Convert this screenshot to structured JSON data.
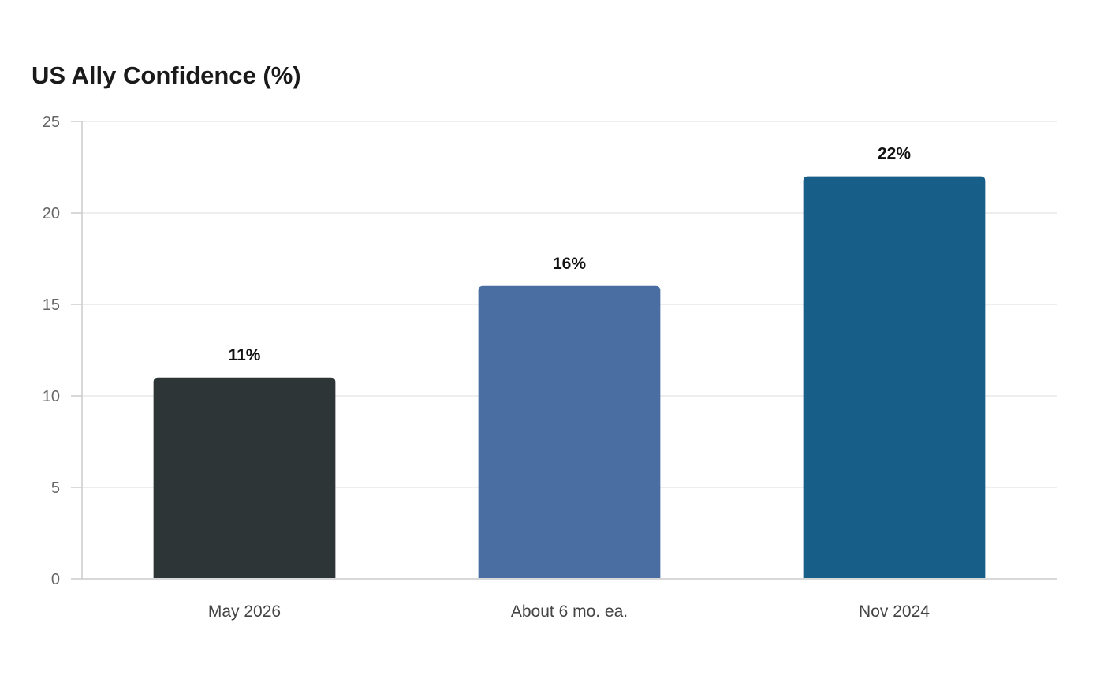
{
  "chart_data": {
    "type": "bar",
    "title": "US Ally Confidence (%)",
    "xlabel": "",
    "ylabel": "",
    "categories": [
      "May 2026",
      "About 6 mo. ea.",
      "Nov 2024"
    ],
    "values": [
      11,
      16,
      22
    ],
    "data_labels": [
      "11%",
      "16%",
      "22%"
    ],
    "colors": [
      "#2e3537",
      "#4a6da2",
      "#175f88"
    ],
    "ylim": [
      0,
      25
    ],
    "yticks": [
      0,
      5,
      10,
      15,
      20,
      25
    ],
    "grid": true,
    "legend": "none"
  }
}
